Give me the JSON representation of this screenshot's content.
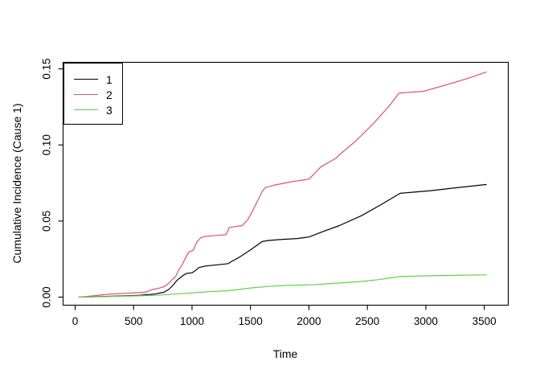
{
  "figure": {
    "background": "#ffffff",
    "axis_color": "#000000"
  },
  "chart_data": {
    "type": "line",
    "title": "",
    "xlabel": "Time",
    "ylabel": "Cumulative Incidence (Cause 1)",
    "xlim": [
      -103,
      3705
    ],
    "ylim": [
      -0.0053,
      0.1543
    ],
    "x_ticks": [
      0,
      500,
      1000,
      1500,
      2000,
      2500,
      3000,
      3500
    ],
    "x_tick_labels": [
      "0",
      "500",
      "1000",
      "1500",
      "2000",
      "2500",
      "3000",
      "3500"
    ],
    "y_ticks": [
      0.0,
      0.05,
      0.1,
      0.15
    ],
    "y_tick_labels": [
      "0.00",
      "0.05",
      "0.10",
      "0.15"
    ],
    "grid": false,
    "legend": {
      "position": "topleft",
      "entries": [
        {
          "label": "1",
          "color": "#000000"
        },
        {
          "label": "2",
          "color": "#DF536B"
        },
        {
          "label": "3",
          "color": "#61D04F"
        }
      ]
    },
    "series": [
      {
        "name": "1",
        "color": "#000000",
        "points": [
          [
            30,
            0
          ],
          [
            200,
            0.0003
          ],
          [
            400,
            0.0008
          ],
          [
            550,
            0.0012
          ],
          [
            680,
            0.002
          ],
          [
            760,
            0.0032
          ],
          [
            800,
            0.005
          ],
          [
            840,
            0.008
          ],
          [
            870,
            0.011
          ],
          [
            920,
            0.014
          ],
          [
            950,
            0.0155
          ],
          [
            1000,
            0.016
          ],
          [
            1030,
            0.0175
          ],
          [
            1060,
            0.0195
          ],
          [
            1120,
            0.0205
          ],
          [
            1250,
            0.0215
          ],
          [
            1310,
            0.022
          ],
          [
            1340,
            0.0235
          ],
          [
            1400,
            0.026
          ],
          [
            1500,
            0.031
          ],
          [
            1600,
            0.0365
          ],
          [
            1650,
            0.0372
          ],
          [
            1750,
            0.0378
          ],
          [
            1900,
            0.0385
          ],
          [
            2000,
            0.0395
          ],
          [
            2100,
            0.0425
          ],
          [
            2260,
            0.047
          ],
          [
            2450,
            0.0535
          ],
          [
            2600,
            0.06
          ],
          [
            2780,
            0.0682
          ],
          [
            2900,
            0.069
          ],
          [
            3050,
            0.07
          ],
          [
            3250,
            0.0718
          ],
          [
            3520,
            0.074
          ]
        ]
      },
      {
        "name": "2",
        "color": "#DF536B",
        "points": [
          [
            30,
            0
          ],
          [
            150,
            0.0008
          ],
          [
            300,
            0.002
          ],
          [
            450,
            0.0026
          ],
          [
            600,
            0.0032
          ],
          [
            660,
            0.005
          ],
          [
            700,
            0.0055
          ],
          [
            760,
            0.0068
          ],
          [
            800,
            0.009
          ],
          [
            830,
            0.0115
          ],
          [
            860,
            0.0135
          ],
          [
            880,
            0.017
          ],
          [
            910,
            0.0205
          ],
          [
            940,
            0.025
          ],
          [
            970,
            0.0295
          ],
          [
            1010,
            0.0308
          ],
          [
            1040,
            0.036
          ],
          [
            1070,
            0.0388
          ],
          [
            1100,
            0.0398
          ],
          [
            1200,
            0.0405
          ],
          [
            1290,
            0.041
          ],
          [
            1320,
            0.0458
          ],
          [
            1430,
            0.047
          ],
          [
            1480,
            0.0512
          ],
          [
            1540,
            0.06
          ],
          [
            1600,
            0.0695
          ],
          [
            1630,
            0.0722
          ],
          [
            1700,
            0.0735
          ],
          [
            1850,
            0.0758
          ],
          [
            2000,
            0.0775
          ],
          [
            2100,
            0.0855
          ],
          [
            2230,
            0.0912
          ],
          [
            2260,
            0.0935
          ],
          [
            2400,
            0.1025
          ],
          [
            2550,
            0.114
          ],
          [
            2680,
            0.125
          ],
          [
            2770,
            0.134
          ],
          [
            2850,
            0.1346
          ],
          [
            2980,
            0.1352
          ],
          [
            3150,
            0.139
          ],
          [
            3350,
            0.1435
          ],
          [
            3520,
            0.148
          ]
        ]
      },
      {
        "name": "3",
        "color": "#61D04F",
        "points": [
          [
            30,
            0
          ],
          [
            300,
            0.0004
          ],
          [
            500,
            0.0008
          ],
          [
            700,
            0.0012
          ],
          [
            850,
            0.002
          ],
          [
            1000,
            0.0028
          ],
          [
            1150,
            0.0036
          ],
          [
            1300,
            0.0042
          ],
          [
            1400,
            0.005
          ],
          [
            1500,
            0.006
          ],
          [
            1650,
            0.007
          ],
          [
            1800,
            0.0077
          ],
          [
            2000,
            0.008
          ],
          [
            2150,
            0.0087
          ],
          [
            2300,
            0.0095
          ],
          [
            2450,
            0.0103
          ],
          [
            2600,
            0.0115
          ],
          [
            2780,
            0.0135
          ],
          [
            3000,
            0.014
          ],
          [
            3250,
            0.0143
          ],
          [
            3520,
            0.0146
          ]
        ]
      }
    ]
  }
}
